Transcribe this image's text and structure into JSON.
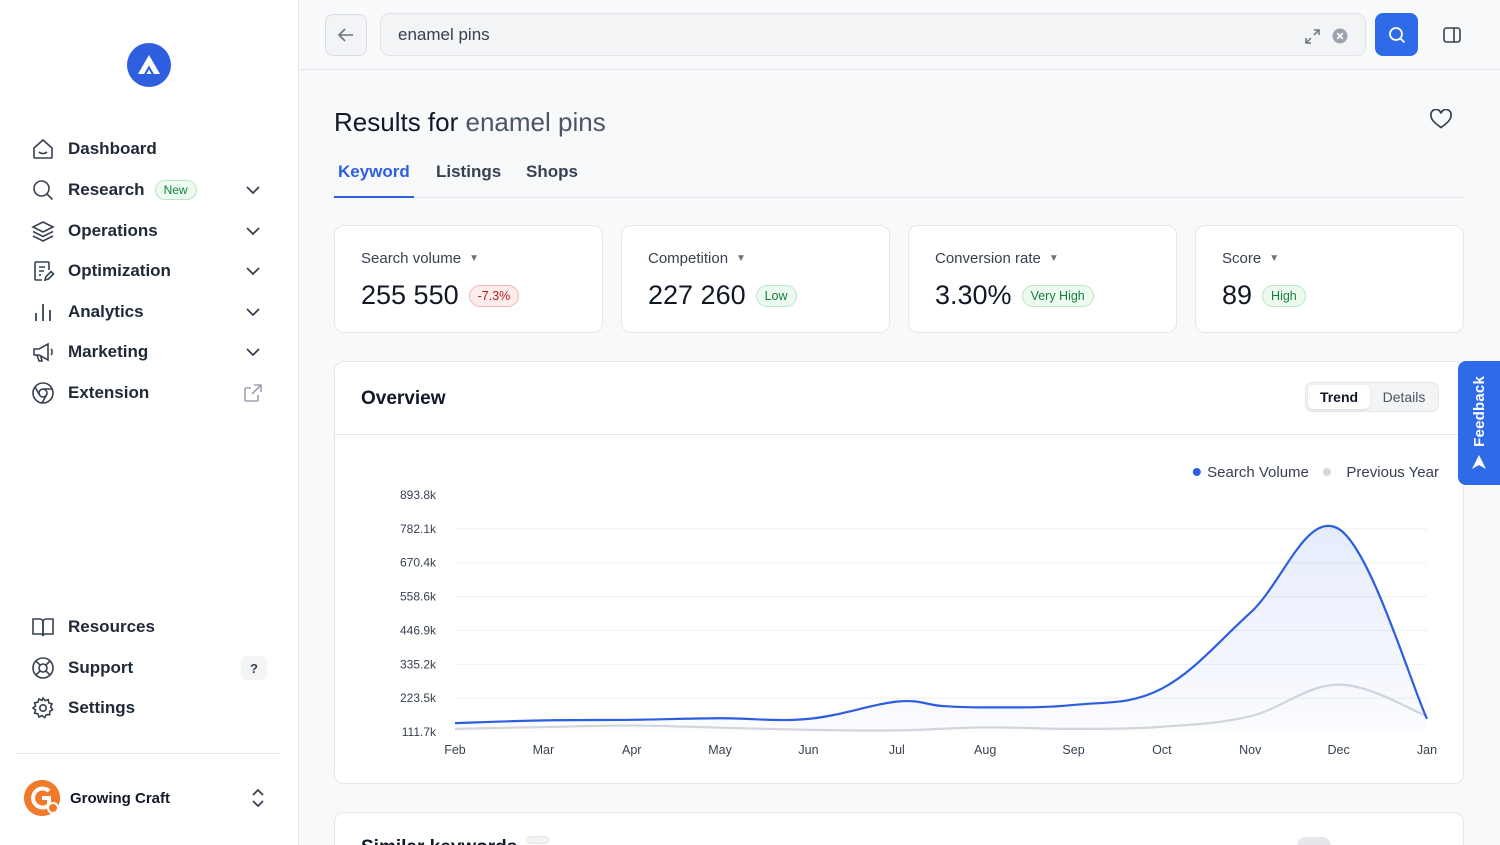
{
  "sidebar": {
    "nav": [
      {
        "label": "Dashboard",
        "icon": "home-icon"
      },
      {
        "label": "Research",
        "icon": "search-icon",
        "badge": "New"
      },
      {
        "label": "Operations",
        "icon": "layers-icon"
      },
      {
        "label": "Optimization",
        "icon": "document-edit-icon"
      },
      {
        "label": "Analytics",
        "icon": "bar-chart-icon"
      },
      {
        "label": "Marketing",
        "icon": "megaphone-icon"
      },
      {
        "label": "Extension",
        "icon": "chrome-icon"
      }
    ],
    "bottom_nav": [
      {
        "label": "Resources",
        "icon": "book-icon"
      },
      {
        "label": "Support",
        "icon": "lifebuoy-icon",
        "hint": "?"
      },
      {
        "label": "Settings",
        "icon": "gear-icon"
      }
    ],
    "profile": {
      "name": "Growing Craft"
    }
  },
  "search": {
    "value": "enamel pins"
  },
  "page": {
    "heading_prefix": "Results for",
    "heading_keyword": "enamel pins",
    "tabs": [
      {
        "label": "Keyword",
        "active": true
      },
      {
        "label": "Listings",
        "active": false
      },
      {
        "label": "Shops",
        "active": false
      }
    ]
  },
  "metrics": [
    {
      "label": "Search volume",
      "value": "255 550",
      "badge": "-7.3%",
      "badge_color": "red"
    },
    {
      "label": "Competition",
      "value": "227 260",
      "badge": "Low",
      "badge_color": "green"
    },
    {
      "label": "Conversion rate",
      "value": "3.30%",
      "badge": "Very High",
      "badge_color": "green"
    },
    {
      "label": "Score",
      "value": "89",
      "badge": "High",
      "badge_color": "green"
    }
  ],
  "overview": {
    "title": "Overview",
    "toggle": [
      "Trend",
      "Details"
    ],
    "active_toggle": "Trend"
  },
  "bottom_section": {
    "title": "Similar keywords"
  },
  "feedback": {
    "label": "Feedback"
  },
  "colors": {
    "accent": "#2f6be8",
    "series_current": "#2d5ee0",
    "series_previous": "#d6d8dc"
  },
  "chart_data": {
    "type": "area",
    "categories": [
      "Feb",
      "Mar",
      "Apr",
      "May",
      "Jun",
      "Jul",
      "Aug",
      "Sep",
      "Oct",
      "Nov",
      "Dec",
      "Jan"
    ],
    "y_ticks": [
      "893.8k",
      "782.1k",
      "670.4k",
      "558.6k",
      "446.9k",
      "335.2k",
      "223.5k",
      "111.7k"
    ],
    "ylim": [
      111700,
      893800
    ],
    "grid": true,
    "legend_position": "top-right",
    "series": [
      {
        "name": "Search Volume",
        "color": "#2d5ee0",
        "filled": true,
        "x": [
          0,
          1,
          2,
          3,
          4,
          5,
          5.5,
          6,
          7,
          8,
          9,
          10,
          11
        ],
        "values": [
          141000,
          150000,
          152000,
          157000,
          155000,
          212000,
          198000,
          193000,
          201000,
          255000,
          505000,
          782000,
          155000
        ]
      },
      {
        "name": "Previous Year",
        "color": "#d6d8dc",
        "filled": false,
        "x": [
          0,
          1,
          2,
          3,
          4,
          5,
          6,
          7,
          8,
          9,
          10,
          11
        ],
        "values": [
          122000,
          128000,
          133000,
          126000,
          119000,
          117000,
          127000,
          122000,
          129000,
          164000,
          268000,
          164000
        ]
      }
    ]
  }
}
